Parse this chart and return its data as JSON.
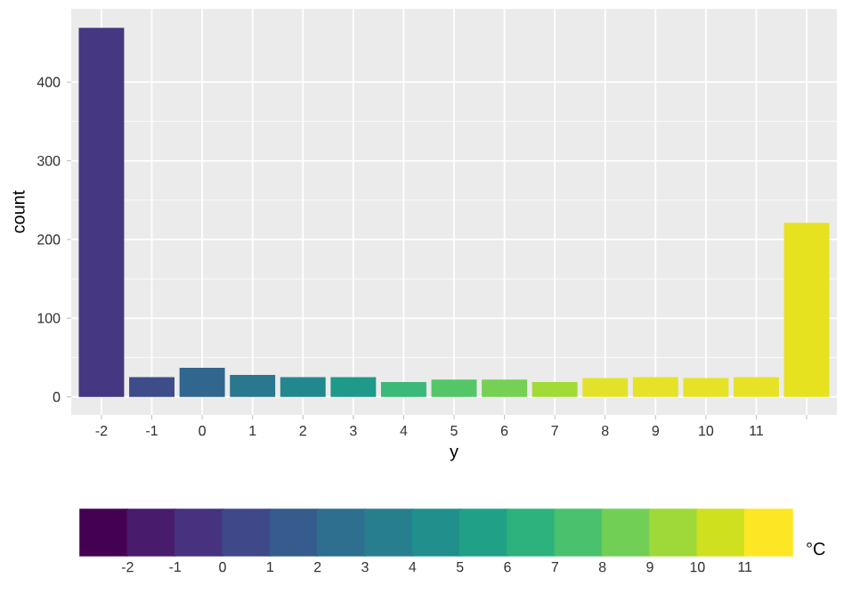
{
  "chart_data": {
    "type": "bar",
    "xlabel": "y",
    "ylabel": "count",
    "categories": [
      "-2",
      "-1",
      "0",
      "1",
      "2",
      "3",
      "4",
      "5",
      "6",
      "7",
      "8",
      "9",
      "10",
      "11",
      null
    ],
    "values": [
      469,
      25,
      37,
      28,
      25,
      25,
      19,
      22,
      22,
      19,
      24,
      25,
      24,
      25,
      221
    ],
    "colors": [
      "#453781",
      "#3e4c8a",
      "#31668e",
      "#2a788e",
      "#23888e",
      "#1f998a",
      "#3cb878",
      "#55c667",
      "#75d054",
      "#a2da37",
      "#e3e22a",
      "#e5e228",
      "#e6e226",
      "#e7e225",
      "#e6e21f"
    ],
    "ylim": [
      -23,
      493
    ],
    "yticks": [
      0,
      100,
      200,
      300,
      400
    ],
    "grid": true,
    "clabel": "°C",
    "clim": [
      -3,
      12
    ],
    "cticks": [
      -2,
      -1,
      0,
      1,
      2,
      3,
      4,
      5,
      6,
      7,
      8,
      9,
      10,
      11
    ]
  }
}
